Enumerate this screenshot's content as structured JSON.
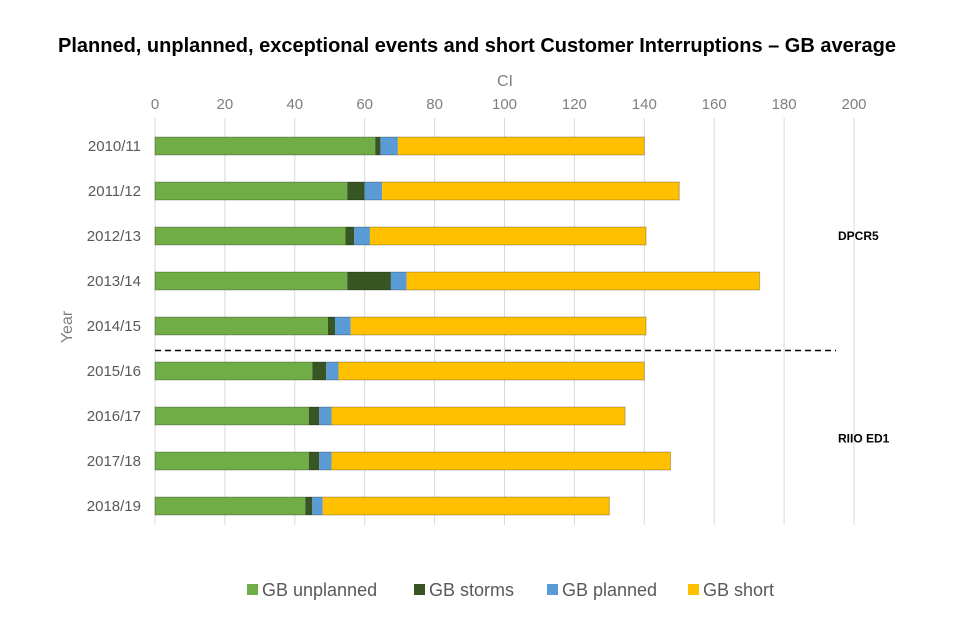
{
  "chart_data": {
    "type": "bar",
    "orientation": "horizontal",
    "stacked": true,
    "title": "Planned, unplanned, exceptional events and short Customer Interruptions – GB  average",
    "xlabel": "CI",
    "ylabel": "Year",
    "xlim": [
      0,
      200
    ],
    "xticks": [
      0,
      20,
      40,
      60,
      80,
      100,
      120,
      140,
      160,
      180,
      200
    ],
    "grid": true,
    "legend_position": "bottom",
    "categories": [
      "2010/11",
      "2011/12",
      "2012/13",
      "2013/14",
      "2014/15",
      "2015/16",
      "2016/17",
      "2017/18",
      "2018/19"
    ],
    "series": [
      {
        "name": "GB unplanned",
        "color": "#70ad47",
        "values": [
          63,
          55,
          54.5,
          55,
          49.5,
          45,
          44,
          44,
          43
        ]
      },
      {
        "name": "GB storms",
        "color": "#375623",
        "values": [
          1.5,
          5,
          2.5,
          12.5,
          2,
          4,
          3,
          3,
          2
        ]
      },
      {
        "name": "GB planned",
        "color": "#5b9bd5",
        "values": [
          5,
          5,
          4.5,
          4.5,
          4.5,
          3.5,
          3.5,
          3.5,
          3
        ]
      },
      {
        "name": "GB short",
        "color": "#ffc000",
        "values": [
          70.5,
          85,
          79,
          101,
          84.5,
          87.5,
          84,
          97,
          82
        ]
      }
    ],
    "annotations": [
      {
        "text": "DPCR5",
        "applies_to": [
          "2010/11",
          "2011/12",
          "2012/13",
          "2013/14",
          "2014/15"
        ]
      },
      {
        "text": "RIIO ED1",
        "applies_to": [
          "2015/16",
          "2016/17",
          "2017/18",
          "2018/19"
        ]
      }
    ],
    "divider": {
      "style": "dashed",
      "between": [
        "2014/15",
        "2015/16"
      ]
    }
  }
}
